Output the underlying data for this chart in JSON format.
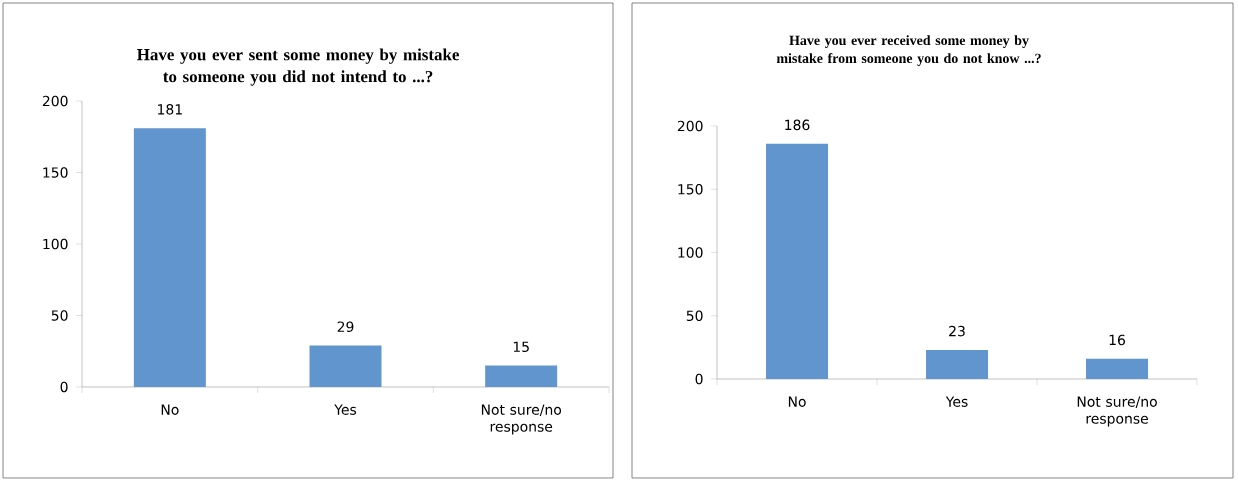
{
  "chart_data": [
    {
      "type": "bar",
      "title": "Have you ever sent some money by mistake to someone you did not intend to ...?",
      "categories": [
        "No",
        "Yes",
        "Not sure/no response"
      ],
      "values": [
        181,
        29,
        15
      ],
      "color": "#6195ce",
      "ylim": [
        0,
        200
      ],
      "yticks": [
        0,
        50,
        100,
        150,
        200
      ],
      "data_labels": true
    },
    {
      "type": "bar",
      "title": "Have you ever received some money by mistake from someone you do not know ...?",
      "categories": [
        "No",
        "Yes",
        "Not sure/no response"
      ],
      "values": [
        186,
        23,
        16
      ],
      "color": "#6195ce",
      "ylim": [
        0,
        200
      ],
      "yticks": [
        0,
        50,
        100,
        150,
        200
      ],
      "data_labels": true
    }
  ]
}
